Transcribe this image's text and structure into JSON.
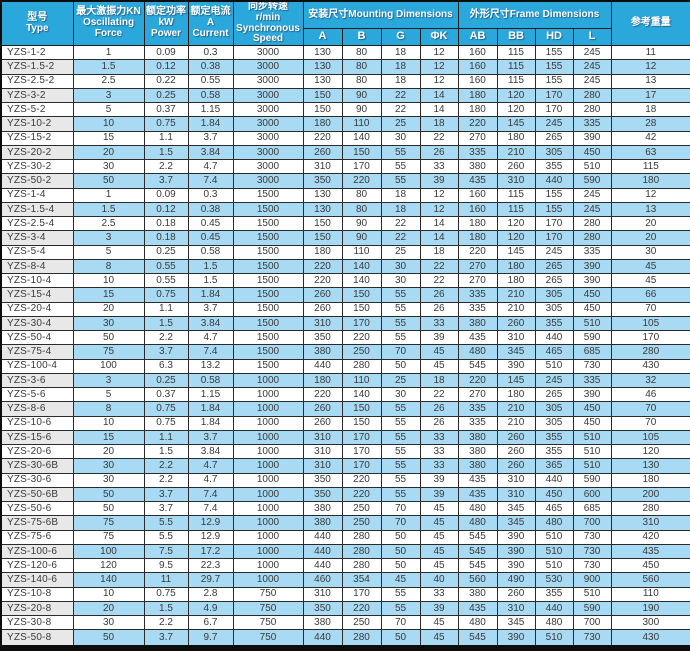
{
  "table": {
    "headers": {
      "type": "型号\nType",
      "force": "最大激振力KN\nOscillating\nForce",
      "power": "额定功率\nkW\nPower",
      "current": "额定电流\nA\nCurrent",
      "speed": "同步转速\nr/min\nSynchronous\nSpeed",
      "mounting": "安装尺寸Mounting Dimensions",
      "frame": "外形尺寸Frame Dimensions",
      "weight": "参考重量",
      "sub": [
        "A",
        "B",
        "G",
        "ΦK",
        "AB",
        "BB",
        "HD",
        "L"
      ]
    },
    "colors": {
      "header_bg": "#2aa7db",
      "stripe_bg": "#a8dbf3",
      "stripe_type_bg": "#e8e8e8",
      "border": "#1b1b1b",
      "text": "#3a3a3a"
    },
    "rows": [
      [
        "YZS-1-2",
        "1",
        "0.09",
        "0.3",
        "3000",
        "130",
        "80",
        "18",
        "12",
        "160",
        "115",
        "155",
        "245",
        "11"
      ],
      [
        "YZS-1.5-2",
        "1.5",
        "0.12",
        "0.38",
        "3000",
        "130",
        "80",
        "18",
        "12",
        "160",
        "115",
        "155",
        "245",
        "12"
      ],
      [
        "YZS-2.5-2",
        "2.5",
        "0.22",
        "0.55",
        "3000",
        "130",
        "80",
        "18",
        "12",
        "160",
        "115",
        "155",
        "245",
        "13"
      ],
      [
        "YZS-3-2",
        "3",
        "0.25",
        "0.58",
        "3000",
        "150",
        "90",
        "22",
        "14",
        "180",
        "120",
        "170",
        "280",
        "17"
      ],
      [
        "YZS-5-2",
        "5",
        "0.37",
        "1.15",
        "3000",
        "150",
        "90",
        "22",
        "14",
        "180",
        "120",
        "170",
        "280",
        "18"
      ],
      [
        "YZS-10-2",
        "10",
        "0.75",
        "1.84",
        "3000",
        "180",
        "110",
        "25",
        "18",
        "220",
        "145",
        "245",
        "335",
        "28"
      ],
      [
        "YZS-15-2",
        "15",
        "1.1",
        "3.7",
        "3000",
        "220",
        "140",
        "30",
        "22",
        "270",
        "180",
        "265",
        "390",
        "42"
      ],
      [
        "YZS-20-2",
        "20",
        "1.5",
        "3.84",
        "3000",
        "260",
        "150",
        "55",
        "26",
        "335",
        "210",
        "305",
        "450",
        "63"
      ],
      [
        "YZS-30-2",
        "30",
        "2.2",
        "4.7",
        "3000",
        "310",
        "170",
        "55",
        "33",
        "380",
        "260",
        "355",
        "510",
        "115"
      ],
      [
        "YZS-50-2",
        "50",
        "3.7",
        "7.4",
        "3000",
        "350",
        "220",
        "55",
        "39",
        "435",
        "310",
        "440",
        "590",
        "180"
      ],
      [
        "YZS-1-4",
        "1",
        "0.09",
        "0.3",
        "1500",
        "130",
        "80",
        "18",
        "12",
        "160",
        "115",
        "155",
        "245",
        "12"
      ],
      [
        "YZS-1.5-4",
        "1.5",
        "0.12",
        "0.38",
        "1500",
        "130",
        "80",
        "18",
        "12",
        "160",
        "115",
        "155",
        "245",
        "13"
      ],
      [
        "YZS-2.5-4",
        "2.5",
        "0.18",
        "0.45",
        "1500",
        "150",
        "90",
        "22",
        "14",
        "180",
        "120",
        "170",
        "280",
        "20"
      ],
      [
        "YZS-3-4",
        "3",
        "0.18",
        "0.45",
        "1500",
        "150",
        "90",
        "22",
        "14",
        "180",
        "120",
        "170",
        "280",
        "20"
      ],
      [
        "YZS-5-4",
        "5",
        "0.25",
        "0.58",
        "1500",
        "180",
        "110",
        "25",
        "18",
        "220",
        "145",
        "245",
        "335",
        "30"
      ],
      [
        "YZS-8-4",
        "8",
        "0.55",
        "1.5",
        "1500",
        "220",
        "140",
        "30",
        "22",
        "270",
        "180",
        "265",
        "390",
        "45"
      ],
      [
        "YZS-10-4",
        "10",
        "0.55",
        "1.5",
        "1500",
        "220",
        "140",
        "30",
        "22",
        "270",
        "180",
        "265",
        "390",
        "45"
      ],
      [
        "YZS-15-4",
        "15",
        "0.75",
        "1.84",
        "1500",
        "260",
        "150",
        "55",
        "26",
        "335",
        "210",
        "305",
        "450",
        "66"
      ],
      [
        "YZS-20-4",
        "20",
        "1.1",
        "3.7",
        "1500",
        "260",
        "150",
        "55",
        "26",
        "335",
        "210",
        "305",
        "450",
        "70"
      ],
      [
        "YZS-30-4",
        "30",
        "1.5",
        "3.84",
        "1500",
        "310",
        "170",
        "55",
        "33",
        "380",
        "260",
        "355",
        "510",
        "105"
      ],
      [
        "YZS-50-4",
        "50",
        "2.2",
        "4.7",
        "1500",
        "350",
        "220",
        "55",
        "39",
        "435",
        "310",
        "440",
        "590",
        "170"
      ],
      [
        "YZS-75-4",
        "75",
        "3.7",
        "7.4",
        "1500",
        "380",
        "250",
        "70",
        "45",
        "480",
        "345",
        "465",
        "685",
        "280"
      ],
      [
        "YZS-100-4",
        "100",
        "6.3",
        "13.2",
        "1500",
        "440",
        "280",
        "50",
        "45",
        "545",
        "390",
        "510",
        "730",
        "430"
      ],
      [
        "YZS-3-6",
        "3",
        "0.25",
        "0.58",
        "1000",
        "180",
        "110",
        "25",
        "18",
        "220",
        "145",
        "245",
        "335",
        "32"
      ],
      [
        "YZS-5-6",
        "5",
        "0.37",
        "1.15",
        "1000",
        "220",
        "140",
        "30",
        "22",
        "270",
        "180",
        "265",
        "390",
        "46"
      ],
      [
        "YZS-8-6",
        "8",
        "0.75",
        "1.84",
        "1000",
        "260",
        "150",
        "55",
        "26",
        "335",
        "210",
        "305",
        "450",
        "70"
      ],
      [
        "YZS-10-6",
        "10",
        "0.75",
        "1.84",
        "1000",
        "260",
        "150",
        "55",
        "26",
        "335",
        "210",
        "305",
        "450",
        "70"
      ],
      [
        "YZS-15-6",
        "15",
        "1.1",
        "3.7",
        "1000",
        "310",
        "170",
        "55",
        "33",
        "380",
        "260",
        "355",
        "510",
        "105"
      ],
      [
        "YZS-20-6",
        "20",
        "1.5",
        "3.84",
        "1000",
        "310",
        "170",
        "55",
        "33",
        "380",
        "260",
        "355",
        "510",
        "120"
      ],
      [
        "YZS-30-6B",
        "30",
        "2.2",
        "4.7",
        "1000",
        "310",
        "170",
        "55",
        "33",
        "380",
        "260",
        "365",
        "510",
        "130"
      ],
      [
        "YZS-30-6",
        "30",
        "2.2",
        "4.7",
        "1000",
        "350",
        "220",
        "55",
        "39",
        "435",
        "310",
        "440",
        "590",
        "180"
      ],
      [
        "YZS-50-6B",
        "50",
        "3.7",
        "7.4",
        "1000",
        "350",
        "220",
        "55",
        "39",
        "435",
        "310",
        "450",
        "600",
        "200"
      ],
      [
        "YZS-50-6",
        "50",
        "3.7",
        "7.4",
        "1000",
        "380",
        "250",
        "70",
        "45",
        "480",
        "345",
        "465",
        "685",
        "280"
      ],
      [
        "YZS-75-6B",
        "75",
        "5.5",
        "12.9",
        "1000",
        "380",
        "250",
        "70",
        "45",
        "480",
        "345",
        "480",
        "700",
        "310"
      ],
      [
        "YZS-75-6",
        "75",
        "5.5",
        "12.9",
        "1000",
        "440",
        "280",
        "50",
        "45",
        "545",
        "390",
        "510",
        "730",
        "420"
      ],
      [
        "YZS-100-6",
        "100",
        "7.5",
        "17.2",
        "1000",
        "440",
        "280",
        "50",
        "45",
        "545",
        "390",
        "510",
        "730",
        "435"
      ],
      [
        "YZS-120-6",
        "120",
        "9.5",
        "22.3",
        "1000",
        "440",
        "280",
        "50",
        "45",
        "545",
        "390",
        "510",
        "730",
        "450"
      ],
      [
        "YZS-140-6",
        "140",
        "11",
        "29.7",
        "1000",
        "460",
        "354",
        "45",
        "40",
        "560",
        "490",
        "530",
        "900",
        "560"
      ],
      [
        "YZS-10-8",
        "10",
        "0.75",
        "2.8",
        "750",
        "310",
        "170",
        "55",
        "33",
        "380",
        "260",
        "355",
        "510",
        "110"
      ],
      [
        "YZS-20-8",
        "20",
        "1.5",
        "4.9",
        "750",
        "350",
        "220",
        "55",
        "39",
        "435",
        "310",
        "440",
        "590",
        "190"
      ],
      [
        "YZS-30-8",
        "30",
        "2.2",
        "6.7",
        "750",
        "380",
        "250",
        "70",
        "45",
        "480",
        "345",
        "480",
        "700",
        "300"
      ],
      [
        "YZS-50-8",
        "50",
        "3.7",
        "9.7",
        "750",
        "440",
        "280",
        "50",
        "45",
        "545",
        "390",
        "510",
        "730",
        "430"
      ]
    ]
  }
}
